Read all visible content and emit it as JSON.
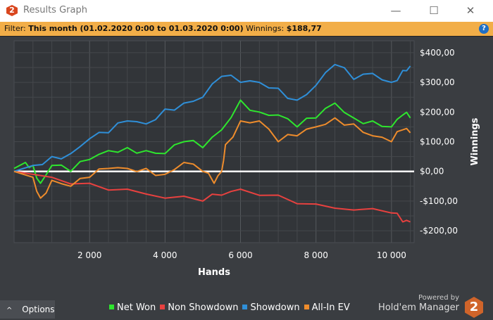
{
  "window": {
    "title": "Results Graph",
    "minimize": "—",
    "maximize": "☐",
    "close": "✕"
  },
  "filter": {
    "label": "Filter:",
    "value": "This month (01.02.2020 0:00 to 01.03.2020 0:00)",
    "winnings_label": "Winnings:",
    "winnings_value": "$188,77",
    "help": "?"
  },
  "options": {
    "label": "Options",
    "icon": "chevron-up-icon"
  },
  "branding": {
    "powered_by": "Powered by",
    "product": "Hold'em Manager",
    "logo_text": "2"
  },
  "chart_data": {
    "type": "line",
    "xlabel": "Hands",
    "ylabel": "Winnings",
    "xlim": [
      0,
      10600
    ],
    "ylim": [
      -240,
      440
    ],
    "x_ticks": [
      2000,
      4000,
      6000,
      8000,
      10000
    ],
    "x_tick_labels": [
      "2 000",
      "4 000",
      "6 000",
      "8 000",
      "10 000"
    ],
    "y_ticks": [
      400,
      300,
      200,
      100,
      0,
      -100,
      -200
    ],
    "y_tick_labels": [
      "$400,00",
      "$300,00",
      "$200,00",
      "$100,00",
      "$0,00",
      "-$100,00",
      "-$200,00"
    ],
    "grid": true,
    "legend": "bottom",
    "series": [
      {
        "name": "Net Won",
        "color": "#2ee62e",
        "x": [
          0,
          300,
          500,
          700,
          1000,
          1500,
          2000,
          2500,
          3000,
          3500,
          4000,
          4500,
          5000,
          5500,
          6000,
          6500,
          7000,
          7500,
          8000,
          8500,
          9000,
          9500,
          10000,
          10300,
          10500
        ],
        "y": [
          10,
          30,
          20,
          -40,
          20,
          0,
          40,
          70,
          80,
          70,
          60,
          100,
          80,
          140,
          240,
          200,
          190,
          150,
          180,
          230,
          180,
          170,
          150,
          190,
          180
        ]
      },
      {
        "name": "Non Showdown",
        "color": "#e8413f",
        "x": [
          0,
          1000,
          2000,
          3000,
          4000,
          5000,
          5500,
          6000,
          7000,
          8000,
          9000,
          10000,
          10300,
          10500
        ],
        "y": [
          0,
          -20,
          -40,
          -60,
          -90,
          -100,
          -80,
          -60,
          -80,
          -110,
          -130,
          -140,
          -170,
          -170
        ]
      },
      {
        "name": "Showdown",
        "color": "#2f8fd8",
        "x": [
          0,
          500,
          1000,
          1500,
          2000,
          2500,
          3000,
          3500,
          4000,
          4500,
          5000,
          5500,
          6000,
          6500,
          7000,
          7500,
          8000,
          8500,
          9000,
          9500,
          10000,
          10300,
          10500
        ],
        "y": [
          0,
          20,
          50,
          60,
          110,
          130,
          170,
          160,
          210,
          230,
          250,
          320,
          300,
          300,
          280,
          240,
          290,
          360,
          310,
          330,
          300,
          340,
          355
        ]
      },
      {
        "name": "All-In EV",
        "color": "#ee8c2c",
        "x": [
          0,
          500,
          700,
          1000,
          1500,
          2000,
          2500,
          3000,
          3500,
          4000,
          4500,
          5000,
          5300,
          5500,
          5600,
          6000,
          6500,
          7000,
          7500,
          8000,
          8500,
          9000,
          9500,
          10000,
          10300,
          10500
        ],
        "y": [
          0,
          -20,
          -90,
          -30,
          -50,
          -20,
          10,
          10,
          10,
          -10,
          30,
          0,
          -40,
          0,
          90,
          170,
          170,
          100,
          120,
          150,
          180,
          160,
          120,
          100,
          140,
          130
        ]
      }
    ]
  }
}
